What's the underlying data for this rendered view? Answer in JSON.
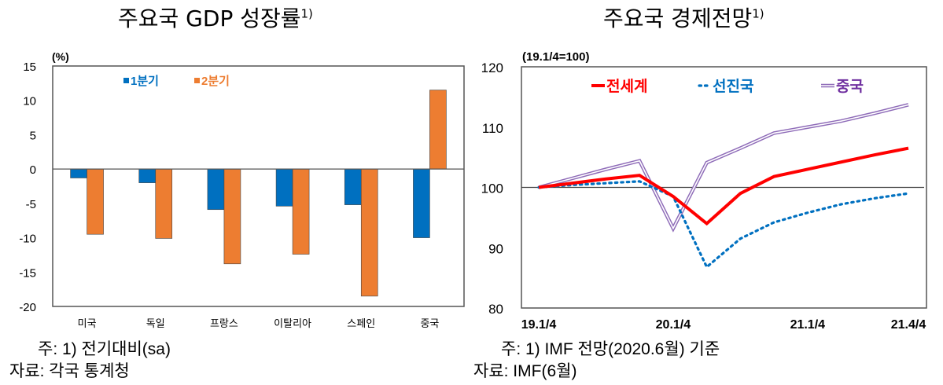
{
  "chart_data": [
    {
      "type": "bar",
      "title": "주요국 GDP 성장률",
      "title_sup": "1)",
      "ylabel": "(%)",
      "ylim": [
        -20,
        15
      ],
      "yticks": [
        15,
        10,
        5,
        0,
        -5,
        -10,
        -15,
        -20
      ],
      "categories": [
        "미국",
        "독일",
        "프랑스",
        "이탈리아",
        "스페인",
        "중국"
      ],
      "series": [
        {
          "name": "1분기",
          "color": "#0070c0",
          "values": [
            -1.3,
            -2.0,
            -5.9,
            -5.4,
            -5.2,
            -10.0
          ]
        },
        {
          "name": "2분기",
          "color": "#ed7d31",
          "values": [
            -9.5,
            -10.1,
            -13.8,
            -12.4,
            -18.5,
            11.5
          ]
        }
      ],
      "legend": "top",
      "grid": false,
      "notes": [
        "주:  1) 전기대비(sa)",
        "자료:  각국  통계청"
      ]
    },
    {
      "type": "line",
      "title": "주요국 경제전망",
      "title_sup": "1)",
      "ylabel": "(19.1/4=100)",
      "ylim": [
        80,
        120
      ],
      "yticks": [
        120,
        110,
        100,
        90,
        80
      ],
      "x": [
        "19.1/4",
        "19.2/4",
        "19.3/4",
        "19.4/4",
        "20.1/4",
        "20.2/4",
        "20.3/4",
        "20.4/4",
        "21.1/4",
        "21.2/4",
        "21.3/4",
        "21.4/4"
      ],
      "xticks": [
        "19.1/4",
        "20.1/4",
        "21.1/4",
        "21.4/4"
      ],
      "series": [
        {
          "name": "전세계",
          "color": "#ff0000",
          "style": "solid",
          "values": [
            100,
            100.7,
            101.4,
            102,
            98.5,
            94,
            99,
            101.8,
            103,
            104.2,
            105.4,
            106.5
          ]
        },
        {
          "name": "선진국",
          "color": "#0070c0",
          "style": "dotted",
          "values": [
            100,
            100.4,
            100.7,
            101,
            98.5,
            86.8,
            91.5,
            94.2,
            95.8,
            97.2,
            98.2,
            99
          ]
        },
        {
          "name": "중국",
          "color": "#8e6bb8",
          "style": "double",
          "values": [
            100,
            101.5,
            103,
            104.4,
            93.2,
            104.1,
            106.5,
            109,
            110,
            111,
            112.3,
            113.7
          ]
        }
      ],
      "legend": "top",
      "grid": false,
      "notes": [
        "주:  1) IMF  전망(2020.6월)  기준",
        "자료:  IMF(6월)"
      ]
    }
  ]
}
